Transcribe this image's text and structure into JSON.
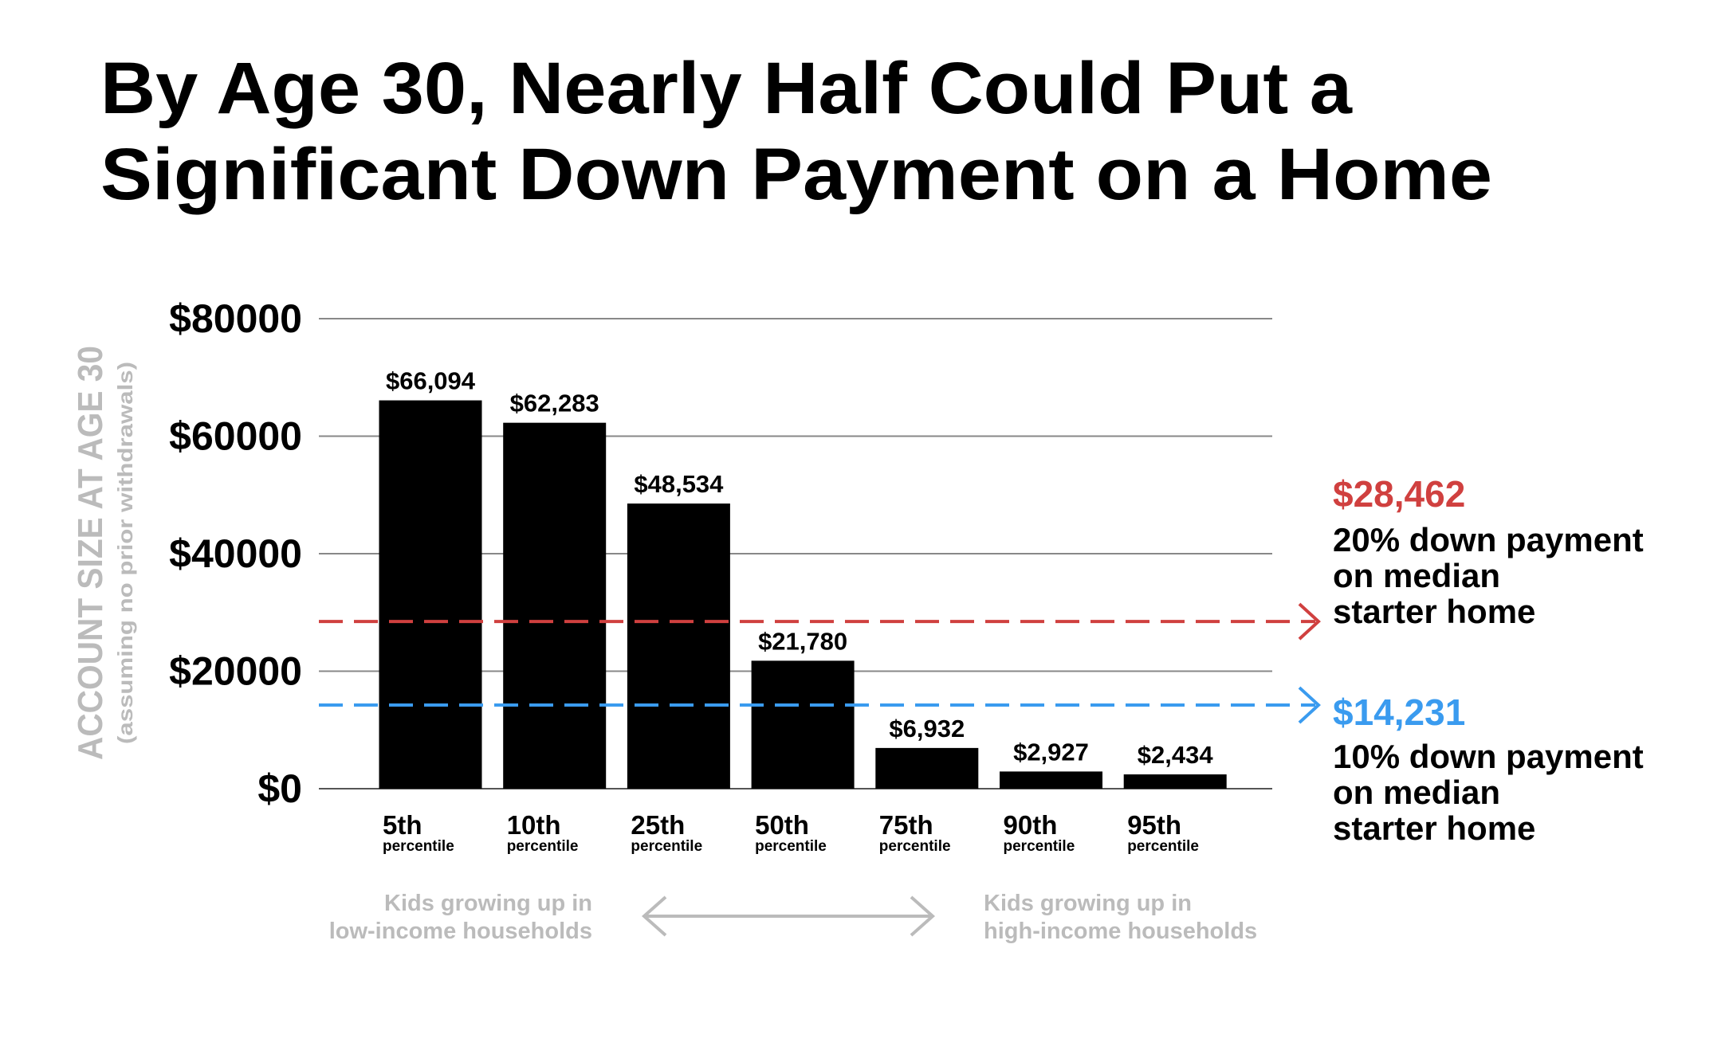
{
  "chart_data": {
    "type": "bar",
    "title": "By Age 30, Nearly Half Could Put a Significant Down Payment on a Home",
    "title_lines": [
      "By Age 30, Nearly Half Could Put a",
      "Significant Down Payment on a Home"
    ],
    "ylabel": "ACCOUNT SIZE AT AGE 30",
    "ylabel_sub": "(assuming no prior withdrawals)",
    "ylim": [
      0,
      80000
    ],
    "yticks": [
      0,
      20000,
      40000,
      60000,
      80000
    ],
    "ytick_labels": [
      "$0",
      "$20000",
      "$40000",
      "$60000",
      "$80000"
    ],
    "grid": true,
    "categories": [
      "5th",
      "10th",
      "25th",
      "50th",
      "75th",
      "90th",
      "95th"
    ],
    "category_sub": "percentile",
    "values": [
      66094,
      62283,
      48534,
      21780,
      6932,
      2927,
      2434
    ],
    "value_labels": [
      "$66,094",
      "$62,283",
      "$48,534",
      "$21,780",
      "$6,932",
      "$2,927",
      "$2,434"
    ],
    "bar_color": "#000000",
    "reference_lines": [
      {
        "value": 28462,
        "label": "$28,462",
        "text_lines": [
          "20% down payment",
          "on median",
          "starter home"
        ],
        "color": "#d0403f",
        "style": "dashed"
      },
      {
        "value": 14231,
        "label": "$14,231",
        "text_lines": [
          "10% down payment",
          "on median",
          "starter home"
        ],
        "color": "#3a9bef",
        "style": "dashed"
      }
    ],
    "x_annotations": {
      "left": [
        "Kids growing up in",
        "low-income households"
      ],
      "right": [
        "Kids growing up in",
        "high-income households"
      ],
      "color": "#bbbbbb"
    }
  }
}
